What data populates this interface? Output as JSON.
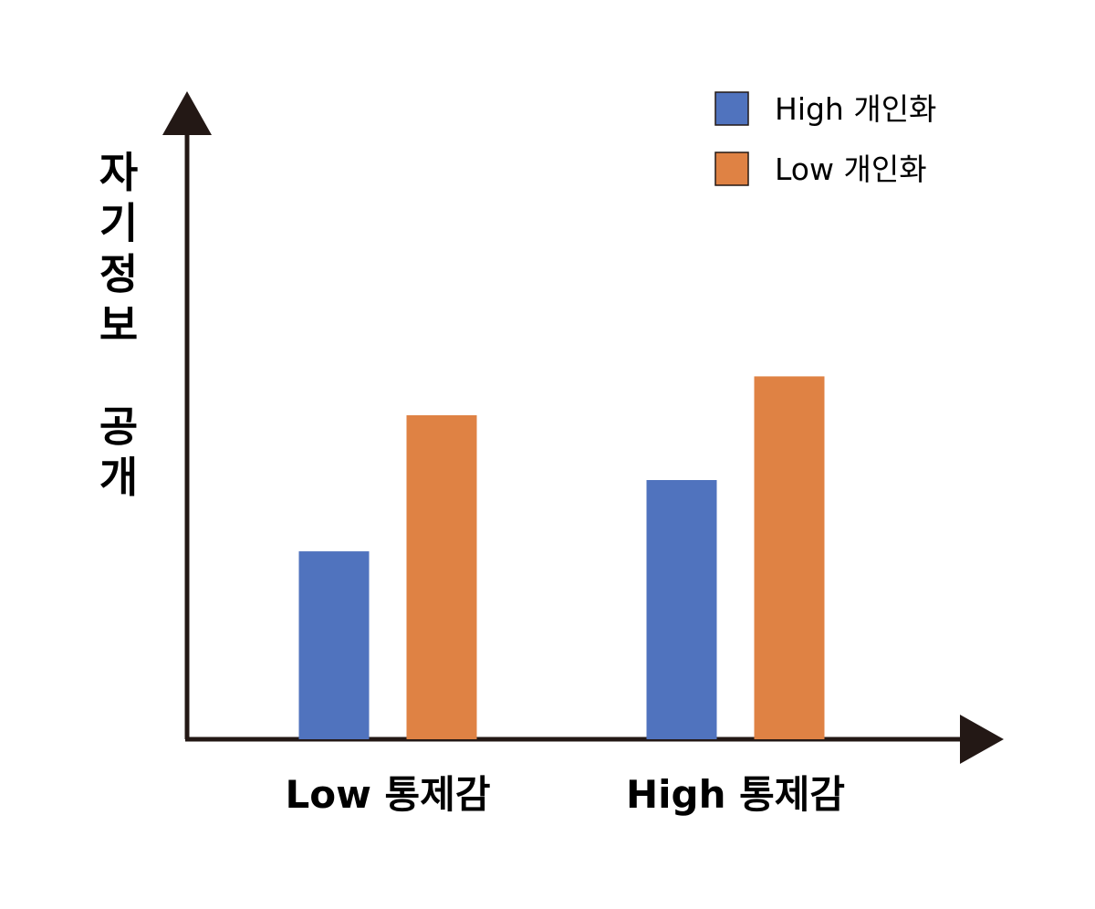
{
  "chart_data": {
    "type": "bar",
    "title": "",
    "xlabel": "",
    "ylabel": "자기정보 공개",
    "categories": [
      "Low 통제감",
      "High 통제감"
    ],
    "series": [
      {
        "name": "High 개인화",
        "color": "#5073BE",
        "values": [
          0.29,
          0.4
        ]
      },
      {
        "name": "Low 개인화",
        "color": "#DF8244",
        "values": [
          0.5,
          0.56
        ]
      }
    ],
    "ylim": [
      0,
      1
    ],
    "grid": false,
    "y_ticks": false,
    "legend_position": "top-right"
  }
}
